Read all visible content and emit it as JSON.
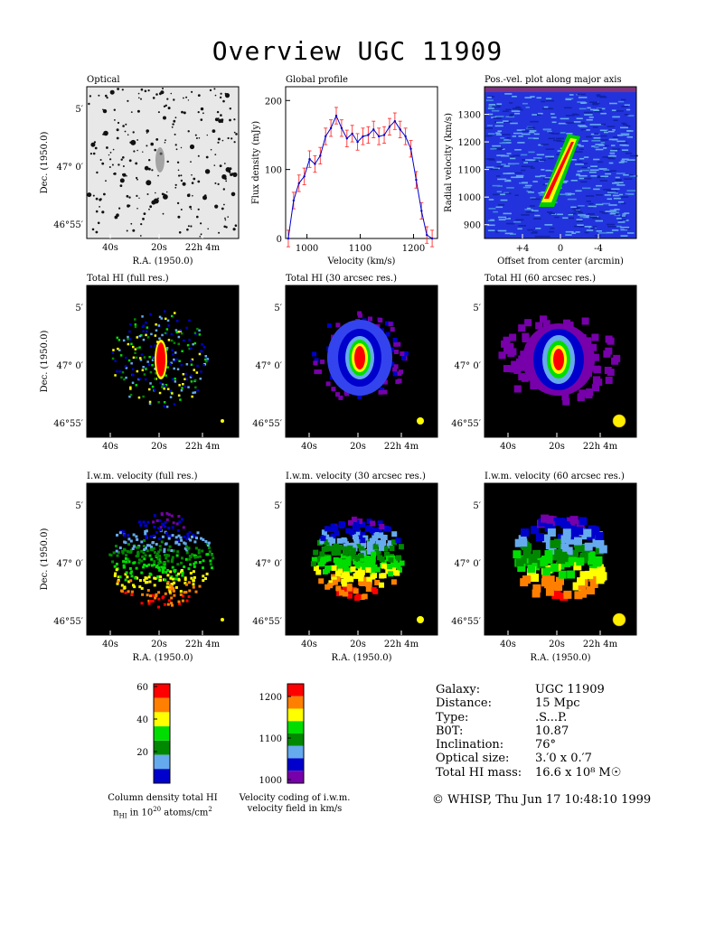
{
  "page_title": "Overview UGC 11909",
  "panels": {
    "optical": {
      "title": "Optical"
    },
    "global_profile": {
      "title": "Global profile",
      "xlabel": "Velocity (km/s)",
      "ylabel": "Flux density (mJy)"
    },
    "pv": {
      "title": "Pos.-vel. plot along major axis",
      "xlabel": "Offset from center (arcmin)",
      "ylabel": "Radial velocity (km/s)"
    },
    "hi_full": {
      "title": "Total HI (full res.)"
    },
    "hi_30": {
      "title": "Total HI (30 arcsec res.)"
    },
    "hi_60": {
      "title": "Total HI (60 arcsec res.)"
    },
    "vel_full": {
      "title": "I.w.m. velocity (full res.)"
    },
    "vel_30": {
      "title": "I.w.m. velocity (30 arcsec res.)"
    },
    "vel_60": {
      "title": "I.w.m. velocity (60 arcsec res.)"
    }
  },
  "sky_axes": {
    "ra_label": "R.A. (1950.0)",
    "dec_label": "Dec. (1950.0)",
    "ra_ticks": [
      "40s",
      "20s",
      "22h 4m"
    ],
    "dec_ticks": [
      "5′",
      "47° 0′",
      "46°55′"
    ]
  },
  "colorbars": {
    "column_density": {
      "ticks": [
        "60",
        "40",
        "20"
      ],
      "label_line1": "Column density total HI",
      "label_line2": "n",
      "label_sub": "HI",
      "label_line2_rest": " in 10",
      "label_sup": "20",
      "label_line2_end": " atoms/cm",
      "label_sup2": "2",
      "colors": [
        "#ff0000",
        "#ff8000",
        "#ffff00",
        "#00dd00",
        "#008800",
        "#66aaee",
        "#0000cc"
      ]
    },
    "velocity": {
      "ticks": [
        "1200",
        "1100",
        "1000"
      ],
      "label_line1": "Velocity coding of i.w.m.",
      "label_line2": "velocity field in km/s",
      "colors": [
        "#ff0000",
        "#ff8000",
        "#ffff00",
        "#00dd00",
        "#008800",
        "#66aaee",
        "#0000cc",
        "#7700aa"
      ]
    }
  },
  "galaxy_info": {
    "rows": [
      {
        "key": "Galaxy:",
        "value": "UGC 11909"
      },
      {
        "key": "Distance:",
        "value": "15 Mpc"
      },
      {
        "key": "Type:",
        "value": ".S...P."
      },
      {
        "key": "B0T:",
        "value": "10.87"
      },
      {
        "key": "Inclination:",
        "value": "76°"
      },
      {
        "key": "Optical size:",
        "value": "3.′0 x 0.′7"
      },
      {
        "key": "Total HI mass:",
        "value": "16.6 x 10⁸ M☉"
      }
    ]
  },
  "credit": "© WHISP, Thu Jun 17 10:48:10 1999",
  "chart_data": {
    "type": "line",
    "title": "Global profile",
    "xlabel": "Velocity (km/s)",
    "ylabel": "Flux density (mJy)",
    "xlim": [
      960,
      1245
    ],
    "ylim": [
      0,
      220
    ],
    "xticks": [
      1000,
      1100,
      1200
    ],
    "yticks": [
      0,
      100,
      200
    ],
    "x": [
      965,
      975,
      985,
      995,
      1005,
      1015,
      1025,
      1035,
      1045,
      1055,
      1065,
      1075,
      1085,
      1095,
      1105,
      1115,
      1125,
      1135,
      1145,
      1155,
      1165,
      1175,
      1185,
      1195,
      1205,
      1215,
      1225,
      1235
    ],
    "y": [
      0,
      55,
      80,
      90,
      115,
      108,
      120,
      148,
      160,
      178,
      160,
      145,
      152,
      140,
      148,
      150,
      158,
      148,
      150,
      162,
      170,
      158,
      148,
      130,
      85,
      40,
      5,
      0
    ],
    "pv_chart": {
      "type": "heatmap",
      "xlim": [
        8,
        -8
      ],
      "ylim": [
        850,
        1400
      ],
      "xticks": [
        "+4",
        "0",
        "-4"
      ],
      "yticks": [
        900,
        1000,
        1100,
        1200,
        1300
      ]
    }
  }
}
